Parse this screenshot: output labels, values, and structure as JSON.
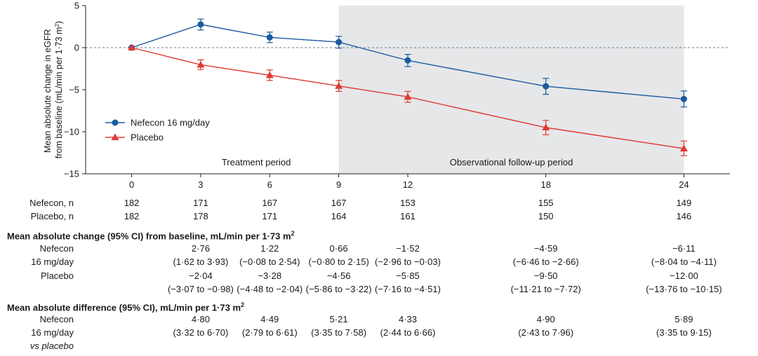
{
  "chart_data": {
    "type": "line",
    "ylabel_line1": "Mean absolute change in eGFR",
    "ylabel_line2_pre": "from baseline (mL/min per 1·73 m",
    "ylabel_sup": "2",
    "ylabel_line2_post": ")",
    "x": [
      0,
      3,
      6,
      9,
      12,
      18,
      24
    ],
    "xticks": [
      "0",
      "3",
      "6",
      "9",
      "12",
      "18",
      "24"
    ],
    "xlim": [
      -2,
      26
    ],
    "yticks": [
      "5",
      "0",
      "−5",
      "−10",
      "−15"
    ],
    "ytick_values": [
      5,
      0,
      -5,
      -10,
      -15
    ],
    "ylim": [
      -15,
      5
    ],
    "reference_line": 0,
    "shaded_region": [
      9,
      24
    ],
    "period_labels": {
      "treatment": "Treatment period",
      "followup": "Observational follow-up period"
    },
    "series": [
      {
        "name": "Nefecon 16 mg/day",
        "color": "#1b5a9e",
        "marker": "circle",
        "y": [
          0,
          2.76,
          1.22,
          0.66,
          -1.52,
          -4.59,
          -6.11
        ],
        "lower": [
          0,
          2.1,
          0.6,
          -0.05,
          -2.25,
          -5.55,
          -7.05
        ],
        "upper": [
          0,
          3.4,
          1.85,
          1.35,
          -0.8,
          -3.65,
          -5.15
        ]
      },
      {
        "name": "Placebo",
        "color": "#e03a34",
        "marker": "triangle",
        "y": [
          0,
          -2.04,
          -3.28,
          -4.56,
          -5.85,
          -9.5,
          -12.0
        ],
        "lower": [
          0,
          -2.6,
          -3.9,
          -5.2,
          -6.5,
          -10.35,
          -12.85
        ],
        "upper": [
          0,
          -1.45,
          -2.65,
          -3.9,
          -5.2,
          -8.65,
          -11.1
        ]
      }
    ],
    "legend": "inside-left"
  },
  "table": {
    "n_rows": [
      {
        "label": "Nefecon, n",
        "values": [
          "182",
          "171",
          "167",
          "167",
          "153",
          "155",
          "149"
        ]
      },
      {
        "label": "Placebo, n",
        "values": [
          "182",
          "178",
          "171",
          "164",
          "161",
          "150",
          "146"
        ]
      }
    ],
    "section1": {
      "title": "Mean absolute change (95% CI) from baseline, mL/min per 1·73 m",
      "title_sup": "2",
      "nef_label_1": "Nefecon",
      "nef_label_2": "16 mg/day",
      "nef_values": [
        "",
        "2·76",
        "1·22",
        "0·66",
        "−1·52",
        "−4·59",
        "−6·11"
      ],
      "nef_ci": [
        "",
        "(1·62 to 3·93)",
        "(−0·08 to 2·54)",
        "(−0·80 to 2·15)",
        "(−2·96 to −0·03)",
        "(−6·46 to −2·66)",
        "(−8·04 to −4·11)"
      ],
      "pla_label": "Placebo",
      "pla_values": [
        "",
        "−2·04",
        "−3·28",
        "−4·56",
        "−5·85",
        "−9·50",
        "−12·00"
      ],
      "pla_ci": [
        "",
        "(−3·07 to −0·98)",
        "(−4·48 to −2·04)",
        "(−5·86 to −3·22)",
        "(−7·16 to −4·51)",
        "(−11·21 to −7·72)",
        "(−13·76 to −10·15)"
      ]
    },
    "section2": {
      "title": "Mean absolute difference (95% CI), mL/min per 1·73 m",
      "title_sup": "2",
      "label_1": "Nefecon",
      "label_2": "16 mg/day",
      "label_3": "vs placebo",
      "values": [
        "",
        "4·80",
        "4·49",
        "5·21",
        "4·33",
        "4·90",
        "5·89"
      ],
      "ci": [
        "",
        "(3·32 to 6·70)",
        "(2·79 to 6·61)",
        "(3·35 to 7·58)",
        "(2·44 to 6·66)",
        "(2·43 to 7·96)",
        "(3·35 to 9·15)"
      ]
    }
  }
}
